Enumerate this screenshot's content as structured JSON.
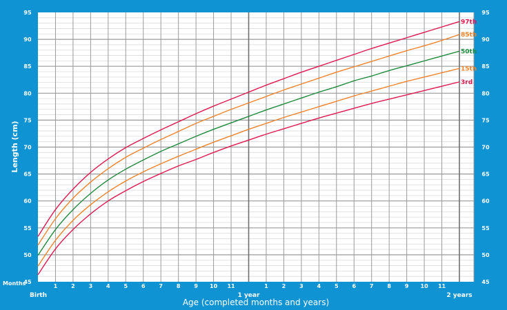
{
  "chart_data": {
    "type": "line",
    "ylabel": "Length (cm)",
    "xlabel": "Age (completed months and years)",
    "x_unit_label": "Months",
    "ylim": [
      45,
      95
    ],
    "yticks": [
      45,
      50,
      55,
      60,
      65,
      70,
      75,
      80,
      85,
      90,
      95
    ],
    "x_months": [
      0,
      1,
      2,
      3,
      4,
      5,
      6,
      7,
      8,
      9,
      10,
      11,
      12,
      13,
      14,
      15,
      16,
      17,
      18,
      19,
      20,
      21,
      22,
      23,
      24
    ],
    "xtick_labels": [
      "Birth",
      "1",
      "2",
      "3",
      "4",
      "5",
      "6",
      "7",
      "8",
      "9",
      "10",
      "11",
      "1 year",
      "1",
      "2",
      "3",
      "4",
      "5",
      "6",
      "7",
      "8",
      "9",
      "10",
      "11",
      "2 years"
    ],
    "grid": true,
    "series": [
      {
        "name": "97th",
        "color": "#e0174f",
        "values": [
          53.4,
          58.4,
          62.2,
          65.3,
          67.8,
          69.9,
          71.6,
          73.2,
          74.7,
          76.2,
          77.6,
          78.9,
          80.2,
          81.5,
          82.7,
          83.9,
          85.0,
          86.1,
          87.2,
          88.3,
          89.3,
          90.3,
          91.3,
          92.3,
          93.3
        ]
      },
      {
        "name": "85th",
        "color": "#f0822a",
        "values": [
          51.8,
          56.7,
          60.5,
          63.5,
          66.0,
          68.1,
          69.8,
          71.4,
          72.9,
          74.4,
          75.7,
          77.0,
          78.2,
          79.4,
          80.6,
          81.7,
          82.8,
          83.9,
          84.9,
          85.9,
          86.9,
          87.9,
          88.8,
          89.8,
          90.9
        ]
      },
      {
        "name": "50th",
        "color": "#1e8a3c",
        "values": [
          49.9,
          54.7,
          58.4,
          61.4,
          63.9,
          65.9,
          67.6,
          69.2,
          70.6,
          72.0,
          73.3,
          74.5,
          75.7,
          76.9,
          78.0,
          79.1,
          80.2,
          81.2,
          82.3,
          83.2,
          84.2,
          85.1,
          86.0,
          86.9,
          87.8
        ]
      },
      {
        "name": "15th",
        "color": "#f0822a",
        "values": [
          47.9,
          52.7,
          56.4,
          59.3,
          61.7,
          63.7,
          65.4,
          66.9,
          68.3,
          69.6,
          70.9,
          72.1,
          73.3,
          74.4,
          75.5,
          76.5,
          77.5,
          78.5,
          79.5,
          80.4,
          81.3,
          82.2,
          83.0,
          83.8,
          84.6
        ]
      },
      {
        "name": "3rd",
        "color": "#e0174f",
        "values": [
          46.3,
          51.1,
          54.7,
          57.6,
          60.0,
          61.9,
          63.6,
          65.1,
          66.5,
          67.7,
          69.0,
          70.2,
          71.3,
          72.4,
          73.4,
          74.4,
          75.4,
          76.3,
          77.2,
          78.1,
          78.9,
          79.7,
          80.5,
          81.3,
          82.1
        ]
      }
    ]
  },
  "colors": {
    "background": "#0f93d2",
    "plot": "#ffffff"
  }
}
